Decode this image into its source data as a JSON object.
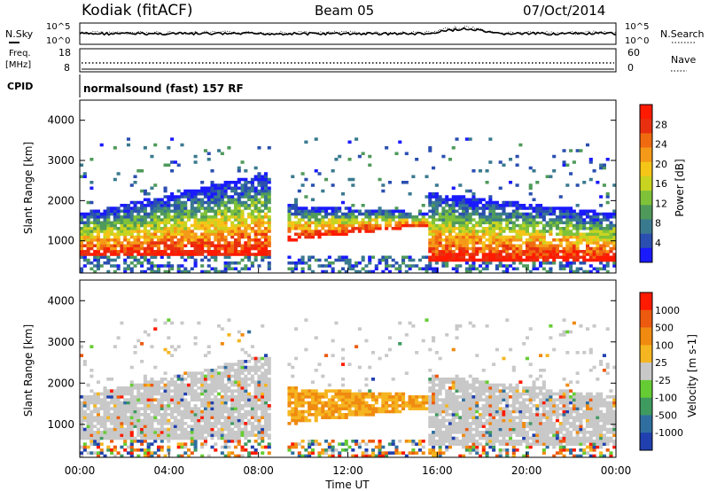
{
  "header": {
    "station": "Kodiak (fitACF)",
    "beam": "Beam 05",
    "date": "07/Oct/2014"
  },
  "noise_panel": {
    "left_label": "N.Sky",
    "right_label": "N.Search",
    "left_ticks": [
      "10^5",
      "10^0"
    ],
    "right_ticks": [
      "10^5",
      "10^0"
    ]
  },
  "freq_panel": {
    "label": "Freq.",
    "unit": "[MHz]",
    "left_ticks": [
      "18",
      "8"
    ],
    "right_label": "Nave",
    "right_ticks": [
      "60",
      "0"
    ]
  },
  "cpid": {
    "label": "CPID",
    "value": "normalsound (fast) 157 RF"
  },
  "chart_data": [
    {
      "type": "heatmap",
      "panel": "power",
      "ylabel": "Slant Range [km]",
      "ylim": [
        200,
        4500
      ],
      "yticks": [
        "1000",
        "2000",
        "3000",
        "4000"
      ],
      "xlim": [
        0,
        24
      ],
      "colorbar": {
        "label": "Power [dB]",
        "ticks": [
          "28",
          "24",
          "20",
          "16",
          "12",
          "8",
          "4"
        ],
        "colors": [
          "#1a1aff",
          "#2a4fb0",
          "#3a7a8f",
          "#4f9a5a",
          "#7fc23a",
          "#c8d420",
          "#f5c518",
          "#f59a18",
          "#f06a10",
          "#e83010",
          "#ff1a00"
        ]
      }
    },
    {
      "type": "heatmap",
      "panel": "velocity",
      "ylabel": "Slant Range [km]",
      "ylim": [
        200,
        4500
      ],
      "yticks": [
        "1000",
        "2000",
        "3000",
        "4000"
      ],
      "xlim": [
        0,
        24
      ],
      "colorbar": {
        "label": "Velocity [m s-1]",
        "ticks": [
          "1000",
          "500",
          "100",
          "25",
          "-25",
          "-100",
          "-500",
          "-1000"
        ],
        "colors": [
          "#2040b0",
          "#2f6fa0",
          "#3f9a60",
          "#66cc33",
          "#c8c8c8",
          "#f5b520",
          "#f08a10",
          "#ec5a10",
          "#ff1a00"
        ]
      }
    }
  ],
  "x_axis": {
    "label": "Time UT",
    "ticks": [
      "00:00",
      "04:00",
      "08:00",
      "12:00",
      "16:00",
      "20:00",
      "00:00"
    ]
  }
}
